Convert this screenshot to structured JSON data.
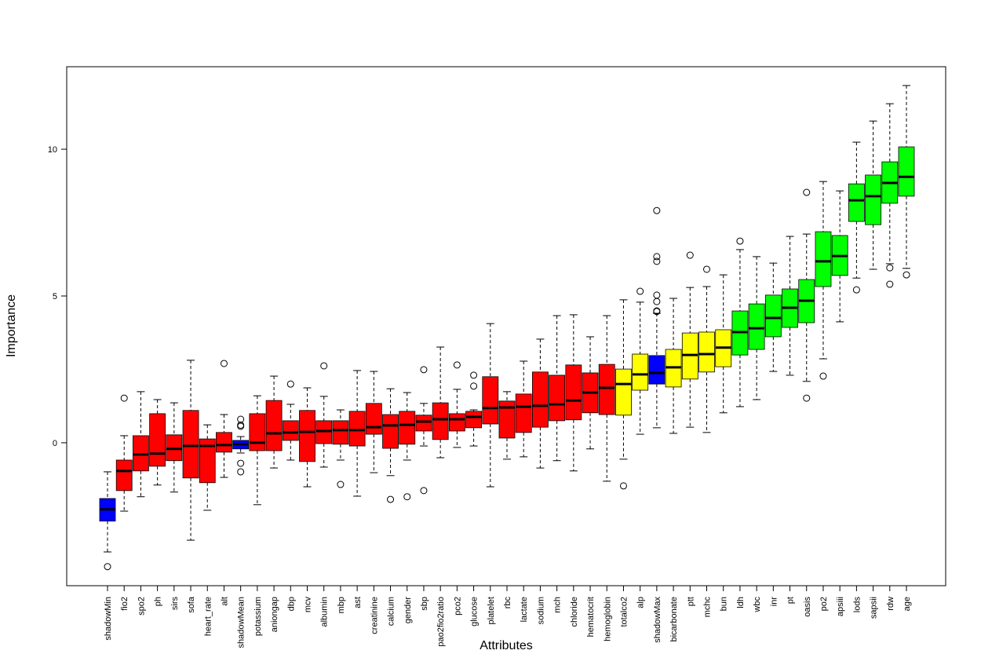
{
  "chart_data": {
    "type": "boxplot",
    "x_label": "Attributes",
    "y_label": "Importance",
    "ylim": [
      -4.87,
      12.81
    ],
    "yticks": [
      0,
      5,
      10
    ],
    "categories": [
      "shadowMin",
      "fio2",
      "spo2",
      "ph",
      "sirs",
      "sofa",
      "heart_rate",
      "alt",
      "shadowMean",
      "potassium",
      "aniongap",
      "dbp",
      "mcv",
      "albumin",
      "mbp",
      "ast",
      "creatinine",
      "calcium",
      "gender",
      "sbp",
      "pao2fio2ratio",
      "pco2",
      "glucose",
      "platelet",
      "rbc",
      "lactate",
      "sodium",
      "mch",
      "chloride",
      "hematocrit",
      "hemoglobin",
      "totalco2",
      "alp",
      "shadowMax",
      "bicarbonate",
      "ptt",
      "mchc",
      "bun",
      "ldh",
      "wbc",
      "inr",
      "pt",
      "oasis",
      "po2",
      "apsiii",
      "lods",
      "sapsii",
      "rdw",
      "age"
    ],
    "colors": [
      "#0000ff",
      "#ff0000",
      "#ff0000",
      "#ff0000",
      "#ff0000",
      "#ff0000",
      "#ff0000",
      "#ff0000",
      "#0000ff",
      "#ff0000",
      "#ff0000",
      "#ff0000",
      "#ff0000",
      "#ff0000",
      "#ff0000",
      "#ff0000",
      "#ff0000",
      "#ff0000",
      "#ff0000",
      "#ff0000",
      "#ff0000",
      "#ff0000",
      "#ff0000",
      "#ff0000",
      "#ff0000",
      "#ff0000",
      "#ff0000",
      "#ff0000",
      "#ff0000",
      "#ff0000",
      "#ff0000",
      "#ffff00",
      "#ffff00",
      "#0000ff",
      "#ffff00",
      "#ffff00",
      "#ffff00",
      "#ffff00",
      "#00ff00",
      "#00ff00",
      "#00ff00",
      "#00ff00",
      "#00ff00",
      "#00ff00",
      "#00ff00",
      "#00ff00",
      "#00ff00",
      "#00ff00",
      "#00ff00"
    ],
    "whisker_low": [
      -3.72,
      -2.33,
      -1.84,
      -1.44,
      -1.68,
      -3.32,
      -2.3,
      -1.18,
      -0.35,
      -2.11,
      -0.86,
      -0.59,
      -1.5,
      -0.83,
      -0.59,
      -1.82,
      -1.02,
      -1.12,
      -0.59,
      -0.11,
      -0.51,
      -0.16,
      -0.11,
      -1.5,
      -0.56,
      -0.48,
      -0.86,
      -0.61,
      -0.96,
      -0.21,
      -1.31,
      -0.56,
      0.29,
      0.51,
      0.32,
      0.53,
      0.35,
      1.02,
      1.23,
      1.47,
      2.43,
      2.3,
      2.09,
      2.86,
      4.12,
      5.61,
      5.91,
      6.1,
      5.94
    ],
    "q1": [
      -2.67,
      -1.63,
      -0.96,
      -0.8,
      -0.61,
      -1.2,
      -1.36,
      -0.32,
      -0.21,
      -0.27,
      -0.27,
      0.08,
      -0.64,
      -0.03,
      -0.05,
      -0.11,
      0.29,
      -0.19,
      -0.05,
      0.4,
      0.11,
      0.4,
      0.51,
      0.64,
      0.16,
      0.35,
      0.53,
      0.75,
      0.78,
      1.02,
      0.96,
      0.94,
      1.79,
      2.0,
      1.9,
      2.17,
      2.41,
      2.59,
      2.99,
      3.18,
      3.61,
      3.93,
      4.09,
      5.32,
      5.7,
      7.54,
      7.43,
      8.16,
      8.4
    ],
    "median": [
      -2.27,
      -0.96,
      -0.4,
      -0.37,
      -0.21,
      -0.11,
      -0.11,
      -0.08,
      -0.05,
      0,
      0.32,
      0.35,
      0.37,
      0.4,
      0.43,
      0.43,
      0.53,
      0.59,
      0.61,
      0.72,
      0.8,
      0.8,
      0.88,
      1.18,
      1.2,
      1.23,
      1.26,
      1.31,
      1.44,
      1.71,
      1.87,
      2.0,
      2.33,
      2.38,
      2.57,
      2.99,
      3.02,
      3.24,
      3.77,
      3.9,
      4.25,
      4.6,
      4.84,
      6.18,
      6.36,
      8.26,
      8.4,
      8.85,
      9.06
    ],
    "q3": [
      -1.9,
      -0.59,
      0.24,
      0.99,
      0.27,
      1.1,
      0.13,
      0.35,
      0.08,
      0.99,
      1.44,
      0.75,
      1.1,
      0.75,
      0.75,
      1.07,
      1.34,
      0.96,
      1.07,
      0.94,
      1.36,
      0.99,
      1.07,
      2.25,
      1.42,
      1.66,
      2.41,
      2.3,
      2.65,
      2.38,
      2.67,
      2.51,
      3.02,
      2.97,
      3.18,
      3.74,
      3.77,
      3.85,
      4.49,
      4.73,
      5.03,
      5.24,
      5.56,
      7.19,
      7.06,
      8.82,
      9.12,
      9.57,
      10.08
    ],
    "whisker_high": [
      -0.99,
      0.24,
      1.74,
      1.47,
      1.36,
      2.81,
      0.61,
      0.96,
      0.21,
      1.6,
      2.27,
      1.31,
      1.87,
      1.58,
      1.12,
      2.46,
      2.43,
      1.84,
      1.71,
      1.34,
      3.26,
      1.82,
      1.12,
      4.06,
      1.74,
      2.78,
      3.53,
      4.33,
      4.36,
      3.61,
      4.33,
      4.87,
      4.79,
      4.41,
      4.92,
      5.29,
      5.32,
      5.72,
      6.58,
      6.34,
      6.12,
      7.03,
      7.11,
      8.9,
      8.58,
      10.24,
      10.96,
      11.55,
      12.17
    ],
    "outliers": [
      [
        -4.22
      ],
      [
        1.52
      ],
      [],
      [],
      [],
      [],
      [],
      [
        2.7
      ],
      [
        0.8,
        0.6,
        0.56,
        -0.7,
        -0.99
      ],
      [],
      [],
      [
        2.0
      ],
      [],
      [
        2.62
      ],
      [
        -1.42
      ],
      [],
      [],
      [
        -1.93
      ],
      [
        -1.84
      ],
      [
        2.49,
        -1.63
      ],
      [],
      [
        2.65
      ],
      [
        2.3,
        1.93
      ],
      [],
      [],
      [],
      [],
      [],
      [],
      [],
      [],
      [
        -1.47
      ],
      [
        5.16
      ],
      [
        7.91,
        6.34,
        6.18,
        5.03,
        4.81,
        4.49,
        4.47
      ],
      [],
      [
        6.39
      ],
      [
        5.91
      ],
      [],
      [
        6.87
      ],
      [],
      [],
      [],
      [
        8.53,
        1.52
      ],
      [
        2.27
      ],
      [],
      [
        5.21
      ],
      [],
      [
        5.96,
        5.4
      ],
      [
        5.72
      ]
    ]
  }
}
